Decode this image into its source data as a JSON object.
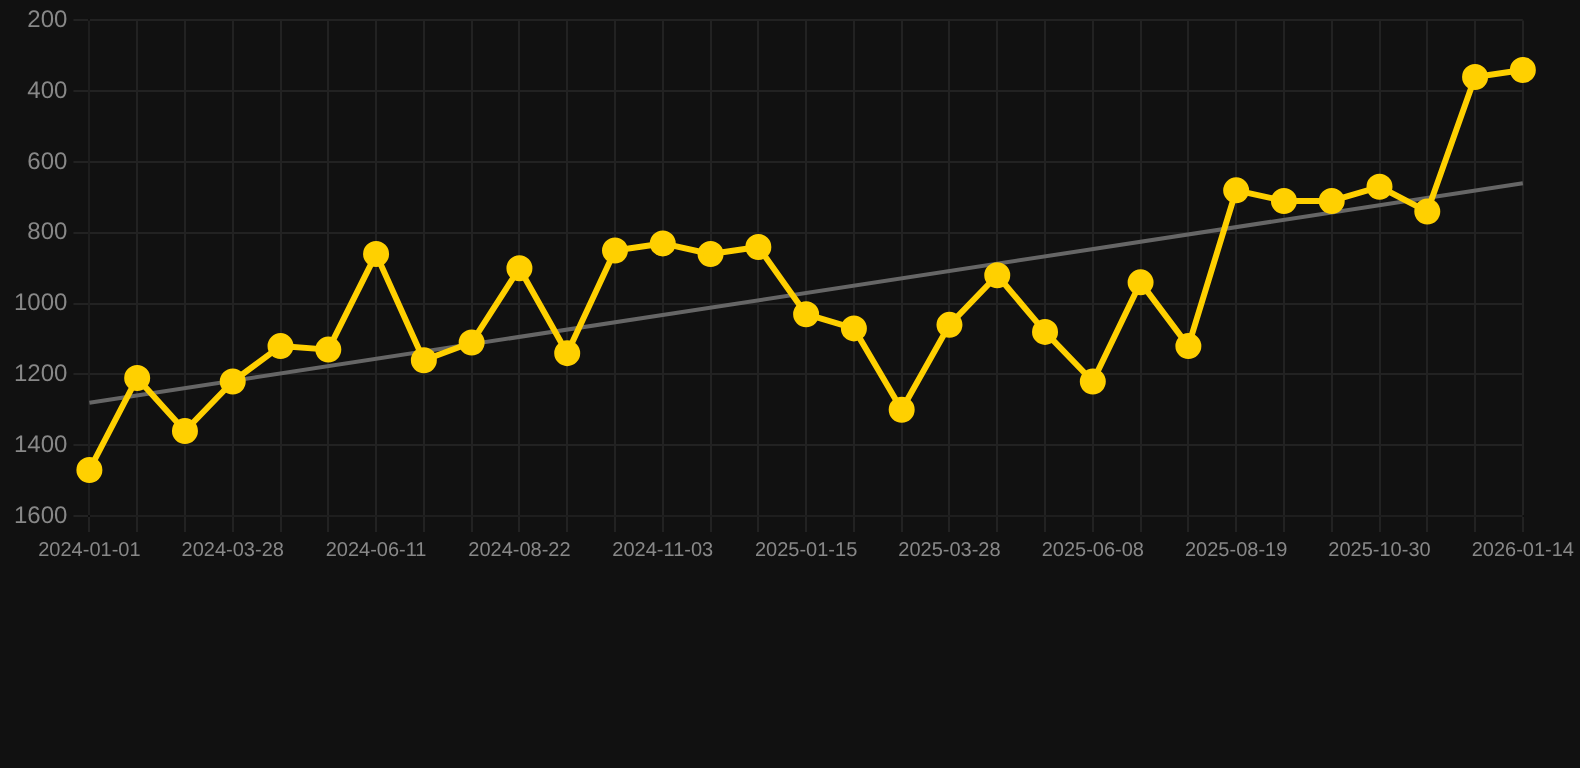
{
  "chart_data": {
    "type": "line",
    "categories": [
      "2024-01-01",
      null,
      null,
      "2024-03-28",
      null,
      null,
      "2024-06-11",
      null,
      null,
      "2024-08-22",
      null,
      null,
      "2024-11-03",
      null,
      null,
      "2025-01-15",
      null,
      null,
      "2025-03-28",
      null,
      null,
      "2025-06-08",
      null,
      null,
      "2025-08-19",
      null,
      null,
      "2025-10-30",
      null,
      null,
      "2026-01-14"
    ],
    "series": [
      {
        "color": "#ffd000",
        "marker": "circle",
        "values": [
          1470,
          1210,
          1360,
          1220,
          1120,
          1130,
          860,
          1160,
          1110,
          900,
          1140,
          850,
          830,
          860,
          840,
          1030,
          1070,
          1300,
          1060,
          920,
          1080,
          1220,
          940,
          1120,
          680,
          710,
          710,
          670,
          740,
          360,
          340
        ]
      },
      {
        "type": "line",
        "color": "#666666",
        "marker": "none",
        "values": [
          1280,
          null,
          null,
          null,
          null,
          null,
          null,
          null,
          null,
          null,
          null,
          null,
          null,
          null,
          null,
          null,
          null,
          null,
          null,
          null,
          null,
          null,
          null,
          null,
          null,
          null,
          null,
          null,
          null,
          null,
          660
        ]
      }
    ],
    "ylim": [
      1600,
      200
    ],
    "yticks": [
      200,
      400,
      600,
      800,
      1000,
      1200,
      1400,
      1600
    ],
    "grid": true,
    "legend": false
  }
}
